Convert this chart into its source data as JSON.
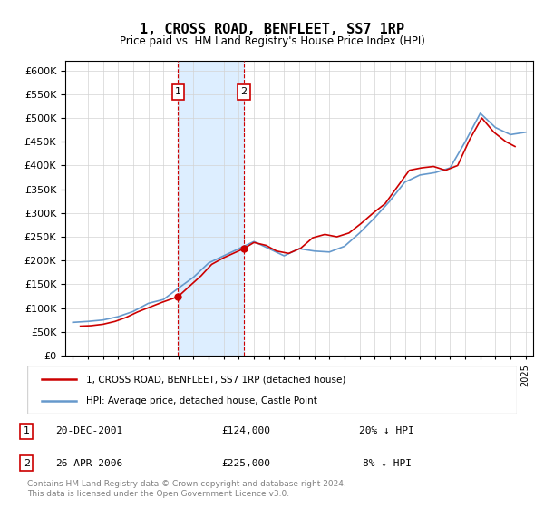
{
  "title": "1, CROSS ROAD, BENFLEET, SS7 1RP",
  "subtitle": "Price paid vs. HM Land Registry's House Price Index (HPI)",
  "legend_line1": "1, CROSS ROAD, BENFLEET, SS7 1RP (detached house)",
  "legend_line2": "HPI: Average price, detached house, Castle Point",
  "annotation1_label": "1",
  "annotation1_date": "20-DEC-2001",
  "annotation1_price": "£124,000",
  "annotation1_hpi": "20% ↓ HPI",
  "annotation1_year": 2001.97,
  "annotation1_value": 124000,
  "annotation2_label": "2",
  "annotation2_date": "26-APR-2006",
  "annotation2_price": "£225,000",
  "annotation2_hpi": "8% ↓ HPI",
  "annotation2_year": 2006.32,
  "annotation2_value": 225000,
  "footer": "Contains HM Land Registry data © Crown copyright and database right 2024.\nThis data is licensed under the Open Government Licence v3.0.",
  "price_color": "#cc0000",
  "hpi_color": "#6699cc",
  "shade_color": "#ddeeff",
  "annotation_box_color": "#cc0000",
  "ylim_min": 0,
  "ylim_max": 620000,
  "hpi_years": [
    1995,
    1996,
    1997,
    1998,
    1999,
    2000,
    2001,
    2002,
    2003,
    2004,
    2005,
    2006,
    2007,
    2008,
    2009,
    2010,
    2011,
    2012,
    2013,
    2014,
    2015,
    2016,
    2017,
    2018,
    2019,
    2020,
    2021,
    2022,
    2023,
    2024,
    2025
  ],
  "hpi_values": [
    70000,
    72000,
    75000,
    82000,
    93000,
    110000,
    118000,
    142000,
    165000,
    195000,
    210000,
    225000,
    240000,
    225000,
    210000,
    225000,
    220000,
    218000,
    230000,
    258000,
    290000,
    325000,
    365000,
    380000,
    385000,
    395000,
    450000,
    510000,
    480000,
    465000,
    470000
  ],
  "price_years": [
    1995.5,
    1996.2,
    1997.0,
    1997.8,
    1998.5,
    1999.3,
    2000.1,
    2000.9,
    2001.97,
    2002.8,
    2003.5,
    2004.2,
    2005.0,
    2006.32,
    2007.0,
    2007.8,
    2008.5,
    2009.3,
    2010.1,
    2010.9,
    2011.7,
    2012.5,
    2013.3,
    2014.1,
    2014.9,
    2015.7,
    2016.5,
    2017.3,
    2018.1,
    2018.9,
    2019.7,
    2020.5,
    2021.3,
    2022.1,
    2022.9,
    2023.7,
    2024.3
  ],
  "price_values": [
    62000,
    63000,
    66000,
    72000,
    80000,
    92000,
    102000,
    112000,
    124000,
    148000,
    168000,
    192000,
    206000,
    225000,
    238000,
    232000,
    220000,
    215000,
    226000,
    248000,
    255000,
    250000,
    258000,
    278000,
    300000,
    320000,
    355000,
    390000,
    395000,
    398000,
    390000,
    400000,
    455000,
    500000,
    470000,
    450000,
    440000
  ]
}
